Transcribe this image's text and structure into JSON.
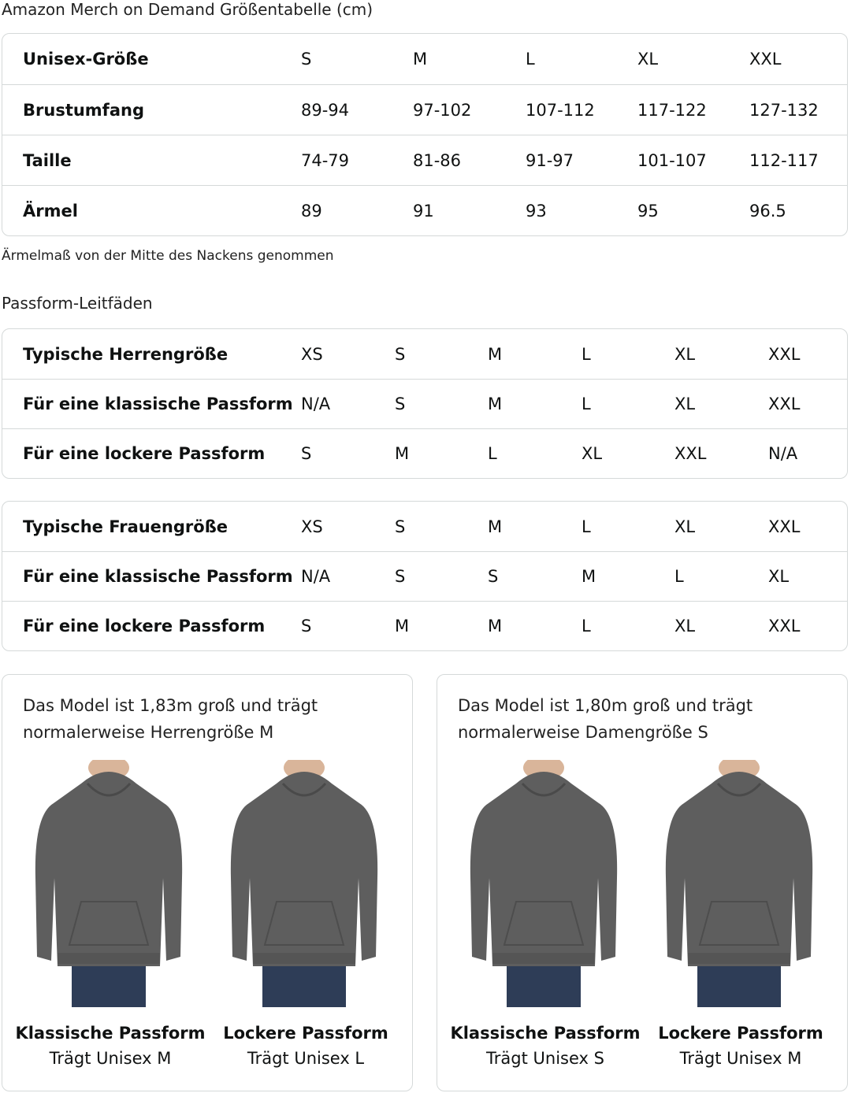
{
  "title": "Amazon Merch on Demand Größentabelle (cm)",
  "size_table": {
    "rows": [
      {
        "label": "Unisex-Größe",
        "values": [
          "S",
          "M",
          "L",
          "XL",
          "XXL"
        ]
      },
      {
        "label": "Brustumfang",
        "values": [
          "89-94",
          "97-102",
          "107-112",
          "117-122",
          "127-132"
        ]
      },
      {
        "label": "Taille",
        "values": [
          "74-79",
          "81-86",
          "91-97",
          "101-107",
          "112-117"
        ]
      },
      {
        "label": "Ärmel",
        "values": [
          "89",
          "91",
          "93",
          "95",
          "96.5"
        ]
      }
    ]
  },
  "note": "Ärmelmaß von der Mitte des Nackens genommen",
  "fit_title": "Passform-Leitfäden",
  "men_table": {
    "rows": [
      {
        "label": "Typische Herrengröße",
        "values": [
          "XS",
          "S",
          "M",
          "L",
          "XL",
          "XXL"
        ]
      },
      {
        "label": "Für eine klassische Passform",
        "values": [
          "N/A",
          "S",
          "M",
          "L",
          "XL",
          "XXL"
        ]
      },
      {
        "label": "Für eine lockere Passform",
        "values": [
          "S",
          "M",
          "L",
          "XL",
          "XXL",
          "N/A"
        ]
      }
    ]
  },
  "women_table": {
    "rows": [
      {
        "label": "Typische Frauengröße",
        "values": [
          "XS",
          "S",
          "M",
          "L",
          "XL",
          "XXL"
        ]
      },
      {
        "label": "Für eine klassische Passform",
        "values": [
          "N/A",
          "S",
          "S",
          "M",
          "L",
          "XL"
        ]
      },
      {
        "label": "Für eine lockere Passform",
        "values": [
          "S",
          "M",
          "M",
          "L",
          "XL",
          "XXL"
        ]
      }
    ]
  },
  "cards": [
    {
      "caption_1": "Das Model ist 1,83m groß und trägt",
      "caption_2": "normalerweise Herrengröße M",
      "fits": [
        {
          "name": "Klassische Passform",
          "wears": "Trägt Unisex M"
        },
        {
          "name": "Lockere Passform",
          "wears": "Trägt Unisex L"
        }
      ]
    },
    {
      "caption_1": "Das Model ist 1,80m groß und trägt",
      "caption_2": "normalerweise Damengröße S",
      "fits": [
        {
          "name": "Klassische Passform",
          "wears": "Trägt Unisex S"
        },
        {
          "name": "Lockere Passform",
          "wears": "Trägt Unisex M"
        }
      ]
    }
  ],
  "colors": {
    "hoodie": "#5e5e5e",
    "jeans": "#2e3d57",
    "border": "#d5d9d9"
  }
}
